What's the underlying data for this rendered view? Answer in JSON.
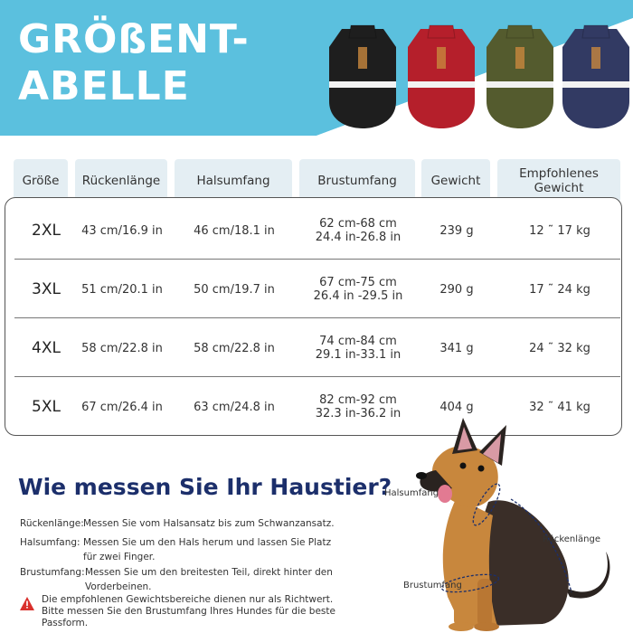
{
  "header": {
    "title_line1": "GRÖßENT-",
    "title_line2": "ABELLE",
    "banner_color": "#5bc0de",
    "jackets": [
      {
        "name": "black-jacket",
        "color": "#1e1e1e"
      },
      {
        "name": "red-jacket",
        "color": "#b51f2b"
      },
      {
        "name": "green-jacket",
        "color": "#545b2e"
      },
      {
        "name": "blue-jacket",
        "color": "#323a63"
      }
    ]
  },
  "table": {
    "headers": [
      "Größe",
      "Rückenlänge",
      "Halsumfang",
      "Brustumfang",
      "Gewicht",
      "Empfohlenes Gewicht"
    ],
    "rows": [
      {
        "size": "2XL",
        "back": "43 cm/16.9 in",
        "neck": "46 cm/18.1 in",
        "chest_line1": "62 cm-68 cm",
        "chest_line2": "24.4 in-26.8 in",
        "weight": "239 g",
        "rec": "12 ˜ 17 kg"
      },
      {
        "size": "3XL",
        "back": "51 cm/20.1 in",
        "neck": "50 cm/19.7 in",
        "chest_line1": "67 cm-75 cm",
        "chest_line2": "26.4 in -29.5 in",
        "weight": "290 g",
        "rec": "17 ˜ 24 kg"
      },
      {
        "size": "4XL",
        "back": "58 cm/22.8 in",
        "neck": "58 cm/22.8 in",
        "chest_line1": "74 cm-84 cm",
        "chest_line2": "29.1 in-33.1 in",
        "weight": "341 g",
        "rec": "24 ˜ 32 kg"
      },
      {
        "size": "5XL",
        "back": "67 cm/26.4 in",
        "neck": "63 cm/24.8 in",
        "chest_line1": "82 cm-92 cm",
        "chest_line2": "32.3 in-36.2 in",
        "weight": "404 g",
        "rec": "32 ˜ 41 kg"
      }
    ]
  },
  "howto": {
    "title": "Wie messen Sie Ihr Haustier?",
    "items": [
      {
        "term": "Rückenlänge:",
        "text": "Messen Sie vom Halsansatz bis zum Schwanzansatz."
      },
      {
        "term": "Halsumfang:",
        "text": "Messen Sie um den Hals herum und lassen Sie Platz für zwei Finger."
      },
      {
        "term": "Brustumfang:",
        "text": "Messen Sie um den breitesten Teil, direkt hinter den Vorderbeinen."
      }
    ],
    "warning": "Die empfohlenen Gewichtsbereiche dienen nur als Richtwert. Bitte messen Sie den Brustumfang Ihres Hundes für die beste Passform.",
    "warning_color": "#d9302c",
    "title_color": "#1c2f6b"
  },
  "dog_labels": {
    "neck": "Halsumfang",
    "back": "Rückenlänge",
    "chest": "Brustumfang"
  }
}
